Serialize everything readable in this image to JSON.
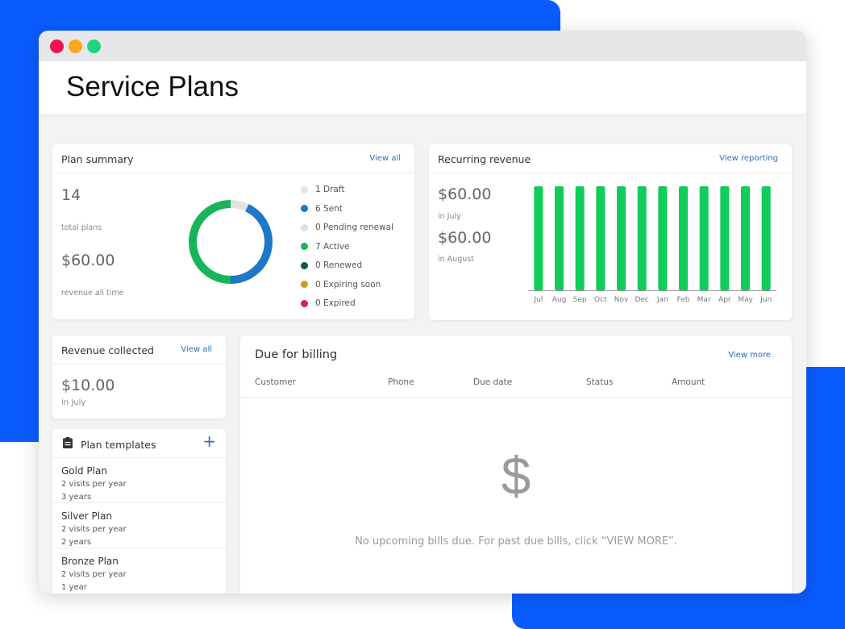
{
  "window": {
    "title": "Service Plans",
    "dots": [
      "#f0144e",
      "#f7a81b",
      "#1fd47e"
    ]
  },
  "colors": {
    "brand_blue": "#0a5cff",
    "link": "#2d6fb6",
    "bar": "#10cc5a"
  },
  "plan_summary": {
    "title": "Plan summary",
    "view_all": "View all",
    "total": "14",
    "total_label": "total plans",
    "revenue": "$60.00",
    "revenue_label": "revenue all time",
    "legend": [
      {
        "label": "1 Draft",
        "color": "#e3e3e3"
      },
      {
        "label": "6 Sent",
        "color": "#1e78c8"
      },
      {
        "label": "0 Pending renewal",
        "color": "#cfe3f5"
      },
      {
        "label": "7 Active",
        "color": "#17b45a"
      },
      {
        "label": "0 Renewed",
        "color": "#0d5e34"
      },
      {
        "label": "0 Expiring soon",
        "color": "#c8a021"
      },
      {
        "label": "0 Expired",
        "color": "#e0185c"
      }
    ]
  },
  "recurring_revenue": {
    "title": "Recurring revenue",
    "view_reporting": "View reporting",
    "stats": [
      {
        "value": "$60.00",
        "label": "in July"
      },
      {
        "value": "$60.00",
        "label": "in August"
      }
    ]
  },
  "chart_data": [
    {
      "type": "pie",
      "variant": "donut",
      "categories": [
        "Draft",
        "Sent",
        "Active"
      ],
      "values": [
        1,
        6,
        7
      ],
      "colors": [
        "#e3e3e3",
        "#1e78c8",
        "#17b45a"
      ]
    },
    {
      "type": "bar",
      "categories": [
        "Jul",
        "Aug",
        "Sep",
        "Oct",
        "Nov",
        "Dec",
        "Jan",
        "Feb",
        "Mar",
        "Apr",
        "May",
        "Jun"
      ],
      "values": [
        60,
        60,
        60,
        60,
        60,
        60,
        60,
        60,
        60,
        60,
        60,
        60
      ],
      "ylim": [
        0,
        60
      ],
      "grid": false,
      "color": "#10cc5a"
    }
  ],
  "revenue_collected": {
    "title": "Revenue collected",
    "view_all": "View all",
    "value": "$10.00",
    "label": "in July"
  },
  "plan_templates": {
    "title": "Plan templates",
    "add": "+",
    "items": [
      {
        "name": "Gold Plan",
        "visits": "2 visits per year",
        "duration": "3 years"
      },
      {
        "name": "Silver Plan",
        "visits": "2 visits per year",
        "duration": "2 years"
      },
      {
        "name": "Bronze Plan",
        "visits": "2 visits per year",
        "duration": "1 year"
      }
    ]
  },
  "due_for_billing": {
    "title": "Due for billing",
    "view_more": "View more",
    "columns": [
      "Customer",
      "Phone",
      "Due date",
      "Status",
      "Amount"
    ],
    "empty_icon": "$",
    "empty_message": "No upcoming bills due. For past due bills, click “VIEW MORE”."
  }
}
